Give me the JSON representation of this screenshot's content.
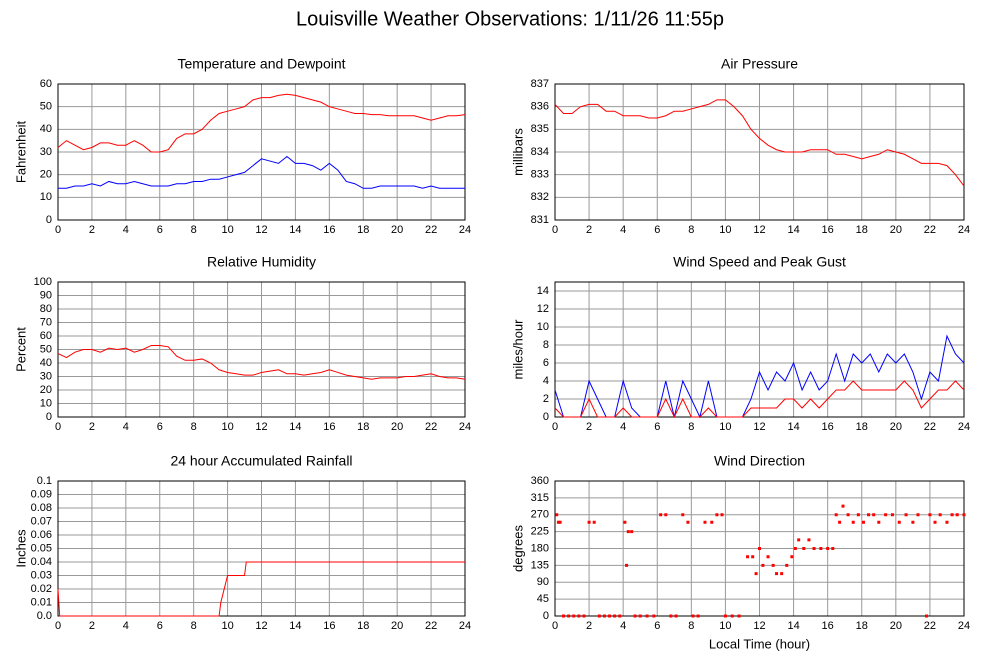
{
  "title": "Louisville Weather Observations: 1/11/26 11:55p",
  "chart_data": [
    {
      "type": "line",
      "title": "Temperature and Dewpoint",
      "ylabel": "Fahrenheit",
      "x": [
        0,
        0.5,
        1,
        1.5,
        2,
        2.5,
        3,
        3.5,
        4,
        4.5,
        5,
        5.5,
        6,
        6.5,
        7,
        7.5,
        8,
        8.5,
        9,
        9.5,
        10,
        10.5,
        11,
        11.5,
        12,
        12.5,
        13,
        13.5,
        14,
        14.5,
        15,
        15.5,
        16,
        16.5,
        17,
        17.5,
        18,
        18.5,
        19,
        19.5,
        20,
        20.5,
        21,
        21.5,
        22,
        22.5,
        23,
        23.5,
        24
      ],
      "series": [
        {
          "color": "#ff0000",
          "values": [
            32,
            35,
            33,
            31,
            32,
            34,
            34,
            33,
            33,
            35,
            33,
            30,
            30,
            31,
            36,
            38,
            38,
            40,
            44,
            47,
            48,
            49,
            50,
            53,
            54,
            54,
            55,
            55.5,
            55,
            54,
            53,
            52,
            50,
            49,
            48,
            47,
            47,
            46.5,
            46.5,
            46,
            46,
            46,
            46,
            45,
            44,
            45,
            46,
            46,
            46.5
          ]
        },
        {
          "color": "#0000ff",
          "values": [
            14,
            14,
            15,
            15,
            16,
            15,
            17,
            16,
            16,
            17,
            16,
            15,
            15,
            15,
            16,
            16,
            17,
            17,
            18,
            18,
            19,
            20,
            21,
            24,
            27,
            26,
            25,
            28,
            25,
            25,
            24,
            22,
            25,
            22,
            17,
            16,
            14,
            14,
            15,
            15,
            15,
            15,
            15,
            14,
            15,
            14,
            14,
            14,
            14
          ]
        }
      ],
      "xlim": [
        0,
        24
      ],
      "xticks": [
        0,
        2,
        4,
        6,
        8,
        10,
        12,
        14,
        16,
        18,
        20,
        22,
        24
      ],
      "ylim": [
        0,
        60
      ],
      "yticks": [
        0,
        10,
        20,
        30,
        40,
        50,
        60
      ],
      "grid": true
    },
    {
      "type": "line",
      "title": "Air Pressure",
      "ylabel": "millibars",
      "x": [
        0,
        0.5,
        1,
        1.5,
        2,
        2.5,
        3,
        3.5,
        4,
        4.5,
        5,
        5.5,
        6,
        6.5,
        7,
        7.5,
        8,
        8.5,
        9,
        9.5,
        10,
        10.5,
        11,
        11.5,
        12,
        12.5,
        13,
        13.5,
        14,
        14.5,
        15,
        15.5,
        16,
        16.5,
        17,
        17.5,
        18,
        18.5,
        19,
        19.5,
        20,
        20.5,
        21,
        21.5,
        22,
        22.5,
        23,
        23.5,
        24
      ],
      "series": [
        {
          "color": "#ff0000",
          "values": [
            836.1,
            835.7,
            835.7,
            836,
            836.1,
            836.1,
            835.8,
            835.8,
            835.6,
            835.6,
            835.6,
            835.5,
            835.5,
            835.6,
            835.8,
            835.8,
            835.9,
            836,
            836.1,
            836.3,
            836.3,
            836,
            835.6,
            835,
            834.6,
            834.3,
            834.1,
            834,
            834,
            834,
            834.1,
            834.1,
            834.1,
            833.9,
            833.9,
            833.8,
            833.7,
            833.8,
            833.9,
            834.1,
            834,
            833.9,
            833.7,
            833.5,
            833.5,
            833.5,
            833.4,
            833,
            832.5
          ]
        }
      ],
      "xlim": [
        0,
        24
      ],
      "xticks": [
        0,
        2,
        4,
        6,
        8,
        10,
        12,
        14,
        16,
        18,
        20,
        22,
        24
      ],
      "ylim": [
        831,
        837
      ],
      "yticks": [
        831,
        832,
        833,
        834,
        835,
        836,
        837
      ],
      "grid": true
    },
    {
      "type": "line",
      "title": "Relative Humidity",
      "ylabel": "Percent",
      "x": [
        0,
        0.5,
        1,
        1.5,
        2,
        2.5,
        3,
        3.5,
        4,
        4.5,
        5,
        5.5,
        6,
        6.5,
        7,
        7.5,
        8,
        8.5,
        9,
        9.5,
        10,
        10.5,
        11,
        11.5,
        12,
        12.5,
        13,
        13.5,
        14,
        14.5,
        15,
        15.5,
        16,
        16.5,
        17,
        17.5,
        18,
        18.5,
        19,
        19.5,
        20,
        20.5,
        21,
        21.5,
        22,
        22.5,
        23,
        23.5,
        24
      ],
      "series": [
        {
          "color": "#ff0000",
          "values": [
            47,
            44,
            48,
            50,
            50,
            48,
            51,
            50,
            51,
            48,
            50,
            53,
            53,
            52,
            45,
            42,
            42,
            43,
            40,
            35,
            33,
            32,
            31,
            31,
            33,
            34,
            35,
            32,
            32,
            31,
            32,
            33,
            35,
            33,
            31,
            30,
            29,
            28,
            29,
            29,
            29,
            30,
            30,
            31,
            32,
            30,
            29,
            29,
            28
          ]
        }
      ],
      "xlim": [
        0,
        24
      ],
      "xticks": [
        0,
        2,
        4,
        6,
        8,
        10,
        12,
        14,
        16,
        18,
        20,
        22,
        24
      ],
      "ylim": [
        0,
        100
      ],
      "yticks": [
        0,
        10,
        20,
        30,
        40,
        50,
        60,
        70,
        80,
        90,
        100
      ],
      "grid": true
    },
    {
      "type": "line",
      "title": "Wind Speed and Peak Gust",
      "ylabel": "miles/hour",
      "x": [
        0,
        0.5,
        1,
        1.5,
        2,
        2.5,
        3,
        3.5,
        4,
        4.5,
        5,
        5.5,
        6,
        6.5,
        7,
        7.5,
        8,
        8.5,
        9,
        9.5,
        10,
        10.5,
        11,
        11.5,
        12,
        12.5,
        13,
        13.5,
        14,
        14.5,
        15,
        15.5,
        16,
        16.5,
        17,
        17.5,
        18,
        18.5,
        19,
        19.5,
        20,
        20.5,
        21,
        21.5,
        22,
        22.5,
        23,
        23.5,
        24
      ],
      "series": [
        {
          "color": "#0000ff",
          "values": [
            3,
            0,
            0,
            0,
            4,
            2,
            0,
            0,
            4,
            1,
            0,
            0,
            0,
            4,
            0,
            4,
            2,
            0,
            4,
            0,
            0,
            0,
            0,
            2,
            5,
            3,
            5,
            4,
            6,
            3,
            5,
            3,
            4,
            7,
            4,
            7,
            6,
            7,
            5,
            7,
            6,
            7,
            5,
            2,
            5,
            4,
            9,
            7,
            6
          ]
        },
        {
          "color": "#ff0000",
          "values": [
            1,
            0,
            0,
            0,
            2,
            0,
            0,
            0,
            1,
            0,
            0,
            0,
            0,
            2,
            0,
            2,
            0,
            0,
            1,
            0,
            0,
            0,
            0,
            1,
            1,
            1,
            1,
            2,
            2,
            1,
            2,
            1,
            2,
            3,
            3,
            4,
            3,
            3,
            3,
            3,
            3,
            4,
            3,
            1,
            2,
            3,
            3,
            4,
            3
          ]
        }
      ],
      "xlim": [
        0,
        24
      ],
      "xticks": [
        0,
        2,
        4,
        6,
        8,
        10,
        12,
        14,
        16,
        18,
        20,
        22,
        24
      ],
      "ylim": [
        0,
        15
      ],
      "yticks": [
        0,
        2,
        4,
        6,
        8,
        10,
        12,
        14
      ],
      "grid": true
    },
    {
      "type": "line",
      "title": "24 hour Accumulated Rainfall",
      "ylabel": "Inches",
      "x": [
        0,
        0.1,
        9.5,
        9.6,
        9.8,
        10.0,
        11.0,
        11.1,
        24
      ],
      "series": [
        {
          "color": "#ff0000",
          "values": [
            0.02,
            0,
            0,
            0.01,
            0.02,
            0.03,
            0.03,
            0.04,
            0.04
          ]
        }
      ],
      "xlim": [
        0,
        24
      ],
      "xticks": [
        0,
        2,
        4,
        6,
        8,
        10,
        12,
        14,
        16,
        18,
        20,
        22,
        24
      ],
      "ylim": [
        0,
        0.1
      ],
      "yticks": [
        {
          "value": 0,
          "label": "0.0"
        },
        0.01,
        0.02,
        0.03,
        0.04,
        0.05,
        0.06,
        0.07,
        0.08,
        0.09,
        0.1
      ],
      "grid": true
    },
    {
      "type": "scatter",
      "title": "Wind Direction",
      "ylabel": "degrees",
      "xlabel": "Local Time (hour)",
      "color": "#ff0000",
      "x": [
        0.1,
        0.2,
        0.3,
        0.5,
        0.8,
        1.1,
        1.4,
        1.7,
        2.0,
        2.3,
        2.6,
        2.9,
        3.2,
        3.5,
        3.8,
        4.1,
        4.2,
        4.3,
        4.5,
        4.7,
        5.0,
        5.4,
        5.8,
        6.2,
        6.5,
        6.8,
        7.1,
        7.5,
        7.8,
        8.1,
        8.4,
        8.8,
        9.2,
        9.5,
        9.8,
        10.0,
        10.4,
        10.8,
        11.3,
        11.6,
        11.8,
        12.0,
        12.2,
        12.5,
        12.8,
        13.0,
        13.3,
        13.6,
        13.9,
        14.1,
        14.3,
        14.6,
        14.9,
        15.2,
        15.6,
        16.0,
        16.3,
        16.5,
        16.7,
        16.9,
        17.2,
        17.5,
        17.8,
        18.1,
        18.4,
        18.7,
        19.0,
        19.4,
        19.8,
        20.2,
        20.6,
        21.0,
        21.3,
        21.8,
        22.0,
        22.3,
        22.6,
        23.0,
        23.3,
        23.6,
        24
      ],
      "values": [
        270,
        250,
        250,
        0,
        0,
        0,
        0,
        0,
        250,
        250,
        0,
        0,
        0,
        0,
        0,
        250,
        135,
        225,
        225,
        0,
        0,
        0,
        0,
        270,
        270,
        0,
        0,
        270,
        250,
        0,
        0,
        250,
        250,
        270,
        270,
        0,
        0,
        0,
        158,
        158,
        113,
        180,
        135,
        158,
        135,
        113,
        113,
        135,
        158,
        180,
        203,
        180,
        203,
        180,
        180,
        180,
        180,
        270,
        250,
        293,
        270,
        250,
        270,
        250,
        270,
        270,
        250,
        270,
        270,
        250,
        270,
        250,
        270,
        0,
        270,
        250,
        270,
        250,
        270,
        270,
        270
      ],
      "xlim": [
        0,
        24
      ],
      "xticks": [
        0,
        2,
        4,
        6,
        8,
        10,
        12,
        14,
        16,
        18,
        20,
        22,
        24
      ],
      "ylim": [
        0,
        360
      ],
      "yticks": [
        0,
        45,
        90,
        135,
        180,
        225,
        270,
        315,
        360
      ],
      "grid": true
    }
  ]
}
